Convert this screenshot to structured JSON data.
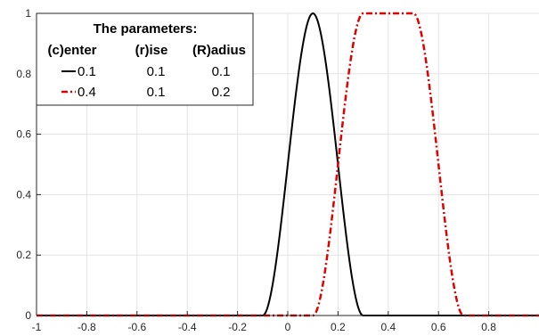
{
  "chart_data": {
    "type": "line",
    "title": "",
    "xlabel": "",
    "ylabel": "",
    "xlim": [
      -1,
      1
    ],
    "ylim": [
      0,
      1
    ],
    "grid": true,
    "legend_placement": "top-left",
    "x_ticks": [
      "-1",
      "-0.8",
      "-0.6",
      "-0.4",
      "-0.2",
      "0",
      "0.2",
      "0.4",
      "0.6",
      "0.8"
    ],
    "x_tick_values": [
      -1,
      -0.8,
      -0.6,
      -0.4,
      -0.2,
      0,
      0.2,
      0.4,
      0.6,
      0.8
    ],
    "y_ticks": [
      "0",
      "0.2",
      "0.4",
      "0.6",
      "0.8",
      "1"
    ],
    "y_tick_values": [
      0,
      0.2,
      0.4,
      0.6,
      0.8,
      1
    ],
    "legend": {
      "title": "The parameters:",
      "headers": [
        "(c)enter",
        "(r)ise",
        "(R)adius"
      ],
      "rows": [
        {
          "center": "0.1",
          "rise": "0.1",
          "radius": "0.1"
        },
        {
          "center": "0.4",
          "rise": "0.1",
          "radius": "0.2"
        }
      ]
    },
    "series": [
      {
        "center": 0.1,
        "rise": 0.1,
        "radius": 0.1,
        "color": "#000000",
        "style": "solid"
      },
      {
        "center": 0.4,
        "rise": 0.1,
        "radius": 0.2,
        "color": "#e00000",
        "style": "dashdot"
      }
    ]
  }
}
